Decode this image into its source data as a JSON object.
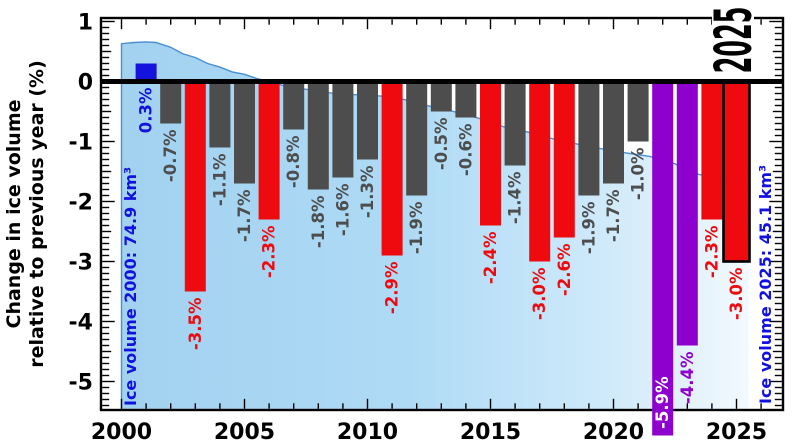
{
  "colors": {
    "gray": "#4d4d4d",
    "red": "#ee0a0e",
    "blue": "#1313dd",
    "purple": "#8d00ce",
    "white": "#ffffff",
    "annotation_blue": "#1111e0",
    "curve_line": "#4a8fd2",
    "fill_left": "#a2d2f0",
    "fill_mid": "#aedaf5",
    "fill_right": "#f3fafe",
    "axis_black": "#000000"
  },
  "y_axis_title": {
    "line1": "Change in ice volume",
    "line2": "relative to previous year (%)"
  },
  "annotations": {
    "ice_volume_2000": "Ice volume 2000: 74.9 km³",
    "ice_volume_2025": "Ice volume 2025: 45.1 km³"
  },
  "current_year_badge": "2025",
  "chart_data": {
    "type": "bar",
    "title": "",
    "xlabel": "",
    "ylabel": "Change in ice volume relative to previous year (%)",
    "grid": false,
    "legend": false,
    "xlim": [
      1999.1,
      2026.9
    ],
    "ylim": [
      -5.5,
      1.05
    ],
    "x_ticks": [
      "2000",
      "2005",
      "2010",
      "2015",
      "2020",
      "2025"
    ],
    "y_ticks": [
      "1",
      "0",
      "-1",
      "-2",
      "-3",
      "-4",
      "-5"
    ],
    "x": [
      2001,
      2002,
      2003,
      2004,
      2005,
      2006,
      2007,
      2008,
      2009,
      2010,
      2011,
      2012,
      2013,
      2014,
      2015,
      2016,
      2017,
      2018,
      2019,
      2020,
      2021,
      2022,
      2023,
      2024,
      2025
    ],
    "values": [
      0.3,
      -0.7,
      -3.5,
      -1.1,
      -1.7,
      -2.3,
      -0.8,
      -1.8,
      -1.6,
      -1.3,
      -2.9,
      -1.9,
      -0.5,
      -0.6,
      -2.4,
      -1.4,
      -3.0,
      -2.6,
      -1.9,
      -1.7,
      -1.0,
      -5.9,
      -4.4,
      -2.3,
      -3.0
    ],
    "bar_labels": [
      "0.3%",
      "-0.7%",
      "-3.5%",
      "-1.1%",
      "-1.7%",
      "-2.3%",
      "-0.8%",
      "-1.8%",
      "-1.6%",
      "-1.3%",
      "-2.9%",
      "-1.9%",
      "-0.5%",
      "-0.6%",
      "-2.4%",
      "-1.4%",
      "-3.0%",
      "-2.6%",
      "-1.9%",
      "-1.7%",
      "-1.0%",
      "-5.9%",
      "-4.4%",
      "-2.3%",
      "-3.0%"
    ],
    "bar_colors": [
      "blue",
      "gray",
      "red",
      "gray",
      "gray",
      "red",
      "gray",
      "gray",
      "gray",
      "gray",
      "red",
      "gray",
      "gray",
      "gray",
      "red",
      "gray",
      "red",
      "red",
      "gray",
      "gray",
      "gray",
      "purple",
      "purple",
      "red",
      "red"
    ],
    "highlight_year": 2025,
    "inside_label_year": 2022,
    "volume_curve": {
      "comment": "background shaded area: glacier ice volume relative trace, y in % axis units",
      "x": [
        2000,
        2000.5,
        2001,
        2001.4,
        2002,
        2002.5,
        2003,
        2003.5,
        2004,
        2004.5,
        2005,
        2005.5,
        2006,
        2006.5,
        2007,
        2007.5,
        2008,
        2008.5,
        2009,
        2009.5,
        2010,
        2010.5,
        2011,
        2011.5,
        2012,
        2012.5,
        2013,
        2013.5,
        2014,
        2014.5,
        2015,
        2015.5,
        2016,
        2016.5,
        2017,
        2017.5,
        2018,
        2018.5,
        2019,
        2019.5,
        2020,
        2020.5,
        2021,
        2021.5,
        2022,
        2022.5,
        2023,
        2023.5,
        2024,
        2024.5,
        2025,
        2025.5
      ],
      "y": [
        0.63,
        0.65,
        0.66,
        0.65,
        0.57,
        0.46,
        0.4,
        0.3,
        0.24,
        0.16,
        0.12,
        0.05,
        0.0,
        -0.06,
        -0.1,
        -0.13,
        -0.16,
        -0.19,
        -0.21,
        -0.22,
        -0.23,
        -0.24,
        -0.27,
        -0.3,
        -0.36,
        -0.41,
        -0.45,
        -0.5,
        -0.56,
        -0.61,
        -0.68,
        -0.75,
        -0.8,
        -0.84,
        -0.9,
        -0.95,
        -1.0,
        -1.04,
        -1.08,
        -1.12,
        -1.15,
        -1.19,
        -1.22,
        -1.25,
        -1.33,
        -1.37,
        -1.5,
        -1.55,
        -1.6,
        -1.62,
        -1.66,
        -1.7
      ]
    }
  }
}
